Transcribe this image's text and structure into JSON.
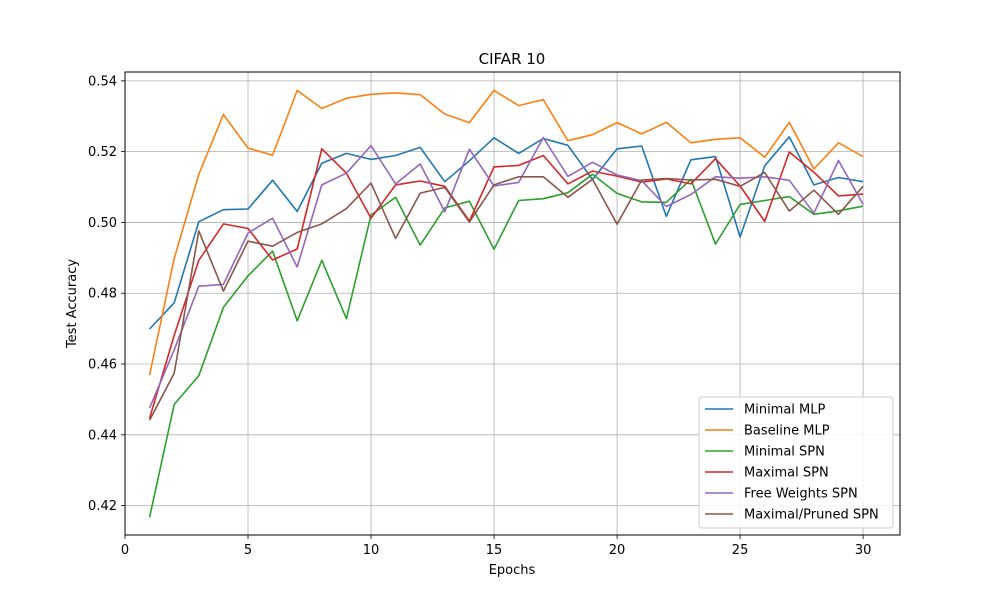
{
  "chart_data": {
    "type": "line",
    "title": "CIFAR 10",
    "xlabel": "Epochs",
    "ylabel": "Test Accuracy",
    "xlim": [
      0,
      31.5
    ],
    "ylim": [
      0.4117,
      0.5425
    ],
    "xticks": [
      0,
      5,
      10,
      15,
      20,
      25,
      30
    ],
    "yticks": [
      0.42,
      0.44,
      0.46,
      0.48,
      0.5,
      0.52,
      0.54
    ],
    "grid": true,
    "legend_position": "lower-right",
    "x": [
      1,
      2,
      3,
      4,
      5,
      6,
      7,
      8,
      9,
      10,
      11,
      12,
      13,
      14,
      15,
      16,
      17,
      18,
      19,
      20,
      21,
      22,
      23,
      24,
      25,
      26,
      27,
      28,
      29,
      30
    ],
    "series": [
      {
        "name": "Minimal MLP",
        "color": "#1f77b4",
        "values": [
          0.4699,
          0.4773,
          0.5002,
          0.5036,
          0.5038,
          0.5119,
          0.5031,
          0.5167,
          0.5195,
          0.5178,
          0.5189,
          0.5212,
          0.5115,
          0.5174,
          0.5239,
          0.5195,
          0.5237,
          0.5218,
          0.5121,
          0.5208,
          0.5216,
          0.5017,
          0.5177,
          0.5186,
          0.4959,
          0.516,
          0.5242,
          0.5106,
          0.5127,
          0.5115
        ]
      },
      {
        "name": "Baseline MLP",
        "color": "#ff7f0e",
        "values": [
          0.4569,
          0.4898,
          0.5136,
          0.5305,
          0.521,
          0.519,
          0.5373,
          0.5322,
          0.5351,
          0.5362,
          0.5366,
          0.5361,
          0.5306,
          0.5282,
          0.5373,
          0.533,
          0.5347,
          0.5231,
          0.5248,
          0.5282,
          0.525,
          0.5283,
          0.5225,
          0.5235,
          0.5239,
          0.5184,
          0.5283,
          0.5151,
          0.5225,
          0.5186
        ]
      },
      {
        "name": "Minimal SPN",
        "color": "#2ca02c",
        "values": [
          0.4167,
          0.4486,
          0.4567,
          0.476,
          0.4849,
          0.4919,
          0.4722,
          0.4893,
          0.4728,
          0.5021,
          0.5071,
          0.4936,
          0.5041,
          0.506,
          0.4924,
          0.5062,
          0.5067,
          0.5084,
          0.5136,
          0.5082,
          0.5058,
          0.5057,
          0.5122,
          0.4939,
          0.5051,
          0.5062,
          0.5073,
          0.5023,
          0.5033,
          0.5046
        ]
      },
      {
        "name": "Maximal SPN",
        "color": "#d62728",
        "values": [
          0.4447,
          0.4681,
          0.4893,
          0.4996,
          0.4983,
          0.4894,
          0.4925,
          0.5208,
          0.5139,
          0.5012,
          0.5106,
          0.5117,
          0.5102,
          0.5004,
          0.5157,
          0.5161,
          0.5189,
          0.5109,
          0.5145,
          0.5131,
          0.5114,
          0.5123,
          0.5109,
          0.518,
          0.5103,
          0.5003,
          0.5199,
          0.5142,
          0.5075,
          0.508
        ]
      },
      {
        "name": "Free Weights SPN",
        "color": "#9467bd",
        "values": [
          0.4476,
          0.464,
          0.482,
          0.4825,
          0.497,
          0.5012,
          0.4874,
          0.5106,
          0.5139,
          0.5217,
          0.5109,
          0.5165,
          0.503,
          0.5207,
          0.5103,
          0.5113,
          0.524,
          0.513,
          0.517,
          0.5134,
          0.5118,
          0.5045,
          0.5079,
          0.5129,
          0.5125,
          0.5129,
          0.5119,
          0.5026,
          0.5175,
          0.5051
        ]
      },
      {
        "name": "Maximal/Pruned SPN",
        "color": "#8c564b",
        "values": [
          0.4441,
          0.4574,
          0.4976,
          0.4806,
          0.4947,
          0.4933,
          0.4972,
          0.4996,
          0.5039,
          0.5111,
          0.4955,
          0.5083,
          0.5099,
          0.5001,
          0.5106,
          0.5129,
          0.5129,
          0.5071,
          0.5122,
          0.4995,
          0.512,
          0.5124,
          0.512,
          0.5122,
          0.5102,
          0.5141,
          0.5032,
          0.5091,
          0.5023,
          0.5102
        ]
      }
    ]
  }
}
